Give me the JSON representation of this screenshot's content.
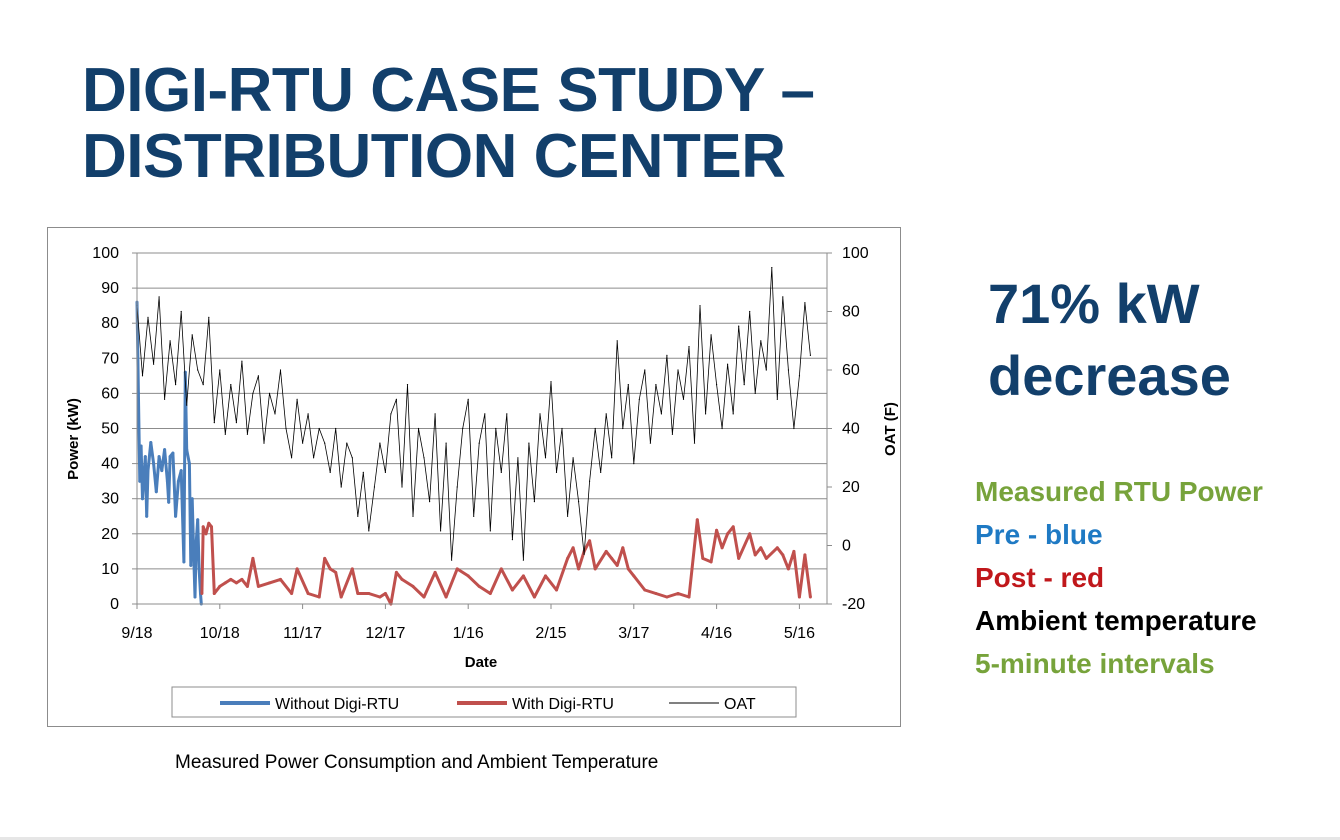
{
  "slide": {
    "title_line1": "DIGI-RTU CASE STUDY –",
    "title_line2": "DISTRIBUTION CENTER",
    "stat_line1": "71% kW",
    "stat_line2": "decrease",
    "notes": [
      {
        "text": "Measured RTU Power",
        "color": "#77a33b"
      },
      {
        "text": "Pre - blue",
        "color": "#1f7ac4"
      },
      {
        "text": "Post - red",
        "color": "#c0171b"
      },
      {
        "text": "Ambient temperature",
        "color": "#000000"
      },
      {
        "text": "5-minute intervals",
        "color": "#77a33b"
      }
    ],
    "caption": "Measured Power Consumption and Ambient Temperature",
    "title_color": "#123f6b"
  },
  "chart_data": {
    "type": "line",
    "title": "",
    "xlabel": "Date",
    "ylabel": "Power (kW)",
    "y2label": "OAT (F)",
    "ylim": [
      0,
      100
    ],
    "y2lim": [
      -20,
      100
    ],
    "yticks": [
      "0",
      "10",
      "20",
      "30",
      "40",
      "50",
      "60",
      "70",
      "80",
      "90",
      "100"
    ],
    "y2ticks": [
      "-20",
      "0",
      "20",
      "40",
      "60",
      "80",
      "100"
    ],
    "xtick_labels": [
      "9/18",
      "10/18",
      "11/17",
      "12/17",
      "1/16",
      "2/15",
      "3/17",
      "4/16",
      "5/16"
    ],
    "xtick_days": [
      0,
      30,
      60,
      90,
      120,
      150,
      180,
      210,
      240
    ],
    "xlim_days": [
      0,
      250
    ],
    "grid": true,
    "legend_placement": "bottom",
    "series": [
      {
        "name": "Without Digi-RTU",
        "color": "#4a7ebb",
        "axis": "left",
        "points": [
          [
            0,
            86
          ],
          [
            0.5,
            60
          ],
          [
            1,
            35
          ],
          [
            1.5,
            45
          ],
          [
            2,
            30
          ],
          [
            3,
            42
          ],
          [
            3.5,
            25
          ],
          [
            4,
            38
          ],
          [
            5,
            46
          ],
          [
            6,
            40
          ],
          [
            7,
            32
          ],
          [
            8,
            42
          ],
          [
            9,
            38
          ],
          [
            10,
            44
          ],
          [
            11,
            35
          ],
          [
            11.5,
            29
          ],
          [
            12,
            42
          ],
          [
            13,
            43
          ],
          [
            14,
            25
          ],
          [
            15,
            35
          ],
          [
            16,
            38
          ],
          [
            17,
            12
          ],
          [
            17.5,
            66
          ],
          [
            18,
            44
          ],
          [
            19,
            40
          ],
          [
            19.5,
            11
          ],
          [
            20,
            30
          ],
          [
            20.5,
            15
          ],
          [
            21,
            2
          ],
          [
            21.5,
            18
          ],
          [
            22,
            24
          ],
          [
            22.5,
            10
          ],
          [
            23,
            3
          ],
          [
            23.3,
            0
          ]
        ]
      },
      {
        "name": "With Digi-RTU",
        "color": "#c0504d",
        "axis": "left",
        "points": [
          [
            23.5,
            3
          ],
          [
            24,
            22
          ],
          [
            25,
            20
          ],
          [
            26,
            23
          ],
          [
            27,
            22
          ],
          [
            28,
            3
          ],
          [
            30,
            5
          ],
          [
            32,
            6
          ],
          [
            34,
            7
          ],
          [
            36,
            6
          ],
          [
            38,
            7
          ],
          [
            40,
            5
          ],
          [
            42,
            13
          ],
          [
            44,
            5
          ],
          [
            48,
            6
          ],
          [
            52,
            7
          ],
          [
            56,
            3
          ],
          [
            58,
            10
          ],
          [
            62,
            3
          ],
          [
            66,
            2
          ],
          [
            68,
            13
          ],
          [
            70,
            10
          ],
          [
            72,
            9
          ],
          [
            74,
            2
          ],
          [
            78,
            10
          ],
          [
            80,
            3
          ],
          [
            84,
            3
          ],
          [
            88,
            2
          ],
          [
            90,
            3
          ],
          [
            92,
            0
          ],
          [
            94,
            9
          ],
          [
            96,
            7
          ],
          [
            100,
            5
          ],
          [
            104,
            2
          ],
          [
            108,
            9
          ],
          [
            112,
            2
          ],
          [
            116,
            10
          ],
          [
            120,
            8
          ],
          [
            124,
            5
          ],
          [
            128,
            3
          ],
          [
            132,
            10
          ],
          [
            136,
            4
          ],
          [
            140,
            8
          ],
          [
            144,
            2
          ],
          [
            148,
            8
          ],
          [
            152,
            4
          ],
          [
            156,
            13
          ],
          [
            158,
            16
          ],
          [
            160,
            10
          ],
          [
            162,
            15
          ],
          [
            164,
            18
          ],
          [
            166,
            10
          ],
          [
            170,
            15
          ],
          [
            172,
            13
          ],
          [
            174,
            11
          ],
          [
            176,
            16
          ],
          [
            178,
            10
          ],
          [
            180,
            8
          ],
          [
            184,
            4
          ],
          [
            188,
            3
          ],
          [
            192,
            2
          ],
          [
            196,
            3
          ],
          [
            200,
            2
          ],
          [
            203,
            24
          ],
          [
            205,
            13
          ],
          [
            208,
            12
          ],
          [
            210,
            21
          ],
          [
            212,
            16
          ],
          [
            214,
            20
          ],
          [
            216,
            22
          ],
          [
            218,
            13
          ],
          [
            222,
            20
          ],
          [
            224,
            14
          ],
          [
            226,
            16
          ],
          [
            228,
            13
          ],
          [
            232,
            16
          ],
          [
            234,
            14
          ],
          [
            236,
            10
          ],
          [
            238,
            15
          ],
          [
            240,
            2
          ],
          [
            242,
            14
          ],
          [
            244,
            2
          ]
        ]
      },
      {
        "name": "OAT",
        "color": "#000000",
        "axis": "right",
        "points": [
          [
            0,
            82
          ],
          [
            2,
            58
          ],
          [
            4,
            78
          ],
          [
            6,
            62
          ],
          [
            8,
            85
          ],
          [
            10,
            50
          ],
          [
            12,
            70
          ],
          [
            14,
            55
          ],
          [
            16,
            80
          ],
          [
            18,
            48
          ],
          [
            20,
            72
          ],
          [
            22,
            60
          ],
          [
            24,
            55
          ],
          [
            26,
            78
          ],
          [
            28,
            42
          ],
          [
            30,
            60
          ],
          [
            32,
            38
          ],
          [
            34,
            55
          ],
          [
            36,
            42
          ],
          [
            38,
            63
          ],
          [
            40,
            38
          ],
          [
            42,
            52
          ],
          [
            44,
            58
          ],
          [
            46,
            35
          ],
          [
            48,
            52
          ],
          [
            50,
            45
          ],
          [
            52,
            60
          ],
          [
            54,
            40
          ],
          [
            56,
            30
          ],
          [
            58,
            50
          ],
          [
            60,
            35
          ],
          [
            62,
            45
          ],
          [
            64,
            30
          ],
          [
            66,
            40
          ],
          [
            68,
            35
          ],
          [
            70,
            25
          ],
          [
            72,
            40
          ],
          [
            74,
            20
          ],
          [
            76,
            35
          ],
          [
            78,
            30
          ],
          [
            80,
            10
          ],
          [
            82,
            25
          ],
          [
            84,
            5
          ],
          [
            86,
            20
          ],
          [
            88,
            35
          ],
          [
            90,
            25
          ],
          [
            92,
            45
          ],
          [
            94,
            50
          ],
          [
            96,
            20
          ],
          [
            98,
            55
          ],
          [
            100,
            10
          ],
          [
            102,
            40
          ],
          [
            104,
            30
          ],
          [
            106,
            15
          ],
          [
            108,
            45
          ],
          [
            110,
            5
          ],
          [
            112,
            35
          ],
          [
            114,
            -5
          ],
          [
            116,
            20
          ],
          [
            118,
            40
          ],
          [
            120,
            50
          ],
          [
            122,
            10
          ],
          [
            124,
            35
          ],
          [
            126,
            45
          ],
          [
            128,
            5
          ],
          [
            130,
            40
          ],
          [
            132,
            25
          ],
          [
            134,
            45
          ],
          [
            136,
            2
          ],
          [
            138,
            30
          ],
          [
            140,
            -5
          ],
          [
            142,
            35
          ],
          [
            144,
            15
          ],
          [
            146,
            45
          ],
          [
            148,
            30
          ],
          [
            150,
            56
          ],
          [
            152,
            25
          ],
          [
            154,
            40
          ],
          [
            156,
            10
          ],
          [
            158,
            30
          ],
          [
            160,
            15
          ],
          [
            162,
            -3
          ],
          [
            164,
            22
          ],
          [
            166,
            40
          ],
          [
            168,
            25
          ],
          [
            170,
            45
          ],
          [
            172,
            30
          ],
          [
            174,
            70
          ],
          [
            176,
            40
          ],
          [
            178,
            55
          ],
          [
            180,
            28
          ],
          [
            182,
            50
          ],
          [
            184,
            60
          ],
          [
            186,
            35
          ],
          [
            188,
            55
          ],
          [
            190,
            45
          ],
          [
            192,
            65
          ],
          [
            194,
            38
          ],
          [
            196,
            60
          ],
          [
            198,
            50
          ],
          [
            200,
            68
          ],
          [
            202,
            35
          ],
          [
            204,
            82
          ],
          [
            206,
            45
          ],
          [
            208,
            72
          ],
          [
            210,
            55
          ],
          [
            212,
            40
          ],
          [
            214,
            62
          ],
          [
            216,
            45
          ],
          [
            218,
            75
          ],
          [
            220,
            55
          ],
          [
            222,
            80
          ],
          [
            224,
            52
          ],
          [
            226,
            70
          ],
          [
            228,
            60
          ],
          [
            230,
            95
          ],
          [
            232,
            50
          ],
          [
            234,
            85
          ],
          [
            236,
            60
          ],
          [
            238,
            40
          ],
          [
            240,
            58
          ],
          [
            242,
            83
          ],
          [
            244,
            65
          ]
        ]
      }
    ]
  }
}
